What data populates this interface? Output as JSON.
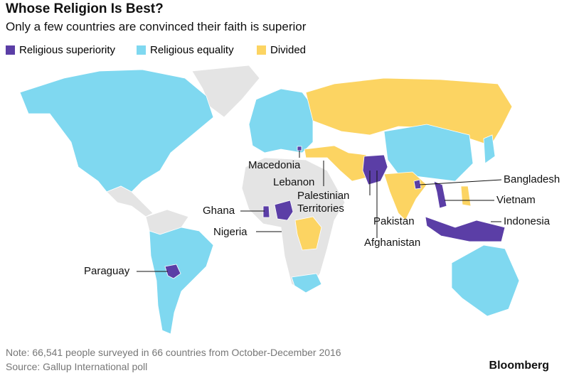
{
  "header": {
    "title": "Whose Religion Is Best?",
    "subtitle": "Only a few countries are convinced their faith is superior"
  },
  "legend": [
    {
      "label": "Religious superiority",
      "color": "#5b3ea6"
    },
    {
      "label": "Religious equality",
      "color": "#7fd8f0"
    },
    {
      "label": "Divided",
      "color": "#fcd462"
    }
  ],
  "annotations": {
    "macedonia": "Macedonia",
    "lebanon": "Lebanon",
    "palestine": "Palestinian Territories",
    "ghana": "Ghana",
    "nigeria": "Nigeria",
    "paraguay": "Paraguay",
    "bangladesh": "Bangladesh",
    "vietnam": "Vietnam",
    "indonesia": "Indonesia",
    "pakistan": "Pakistan",
    "afghanistan": "Afghanistan"
  },
  "footer": {
    "note": "Note: 66,541 people surveyed in 66 countries from October-December 2016",
    "source": "Source: Gallup International poll",
    "brand": "Bloomberg"
  }
}
